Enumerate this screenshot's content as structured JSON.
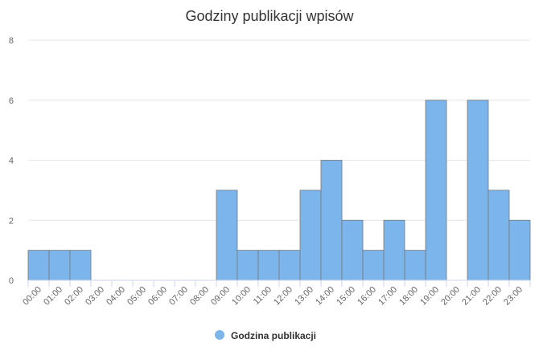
{
  "chart_data": {
    "type": "bar",
    "title": "Godziny publikacji wpisów",
    "categories": [
      "00:00",
      "01:00",
      "02:00",
      "03:00",
      "04:00",
      "05:00",
      "06:00",
      "07:00",
      "08:00",
      "09:00",
      "10:00",
      "11:00",
      "12:00",
      "13:00",
      "14:00",
      "15:00",
      "16:00",
      "17:00",
      "18:00",
      "19:00",
      "20:00",
      "21:00",
      "22:00",
      "23:00"
    ],
    "series": [
      {
        "name": "Godzina publikacji",
        "color": "#7cb5ec",
        "values": [
          1,
          1,
          1,
          0,
          0,
          0,
          0,
          0,
          0,
          3,
          1,
          1,
          1,
          3,
          4,
          2,
          1,
          2,
          1,
          6,
          0,
          6,
          3,
          2
        ]
      }
    ],
    "ylim": [
      0,
      8
    ],
    "yticks": [
      0,
      2,
      4,
      6,
      8
    ],
    "grid": true,
    "legend": "bottom"
  }
}
